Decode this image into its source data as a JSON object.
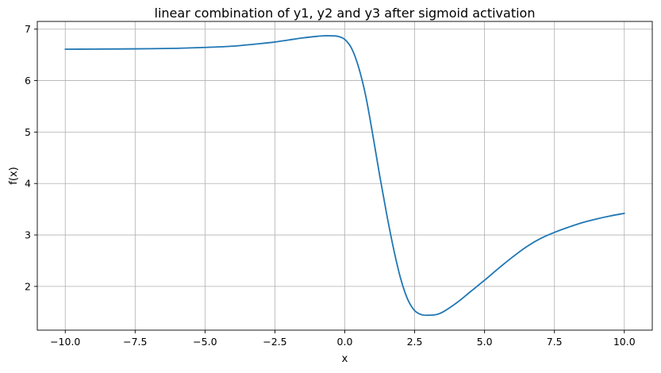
{
  "chart_data": {
    "type": "line",
    "title": "linear combination of y1, y2 and y3 after sigmoid activation",
    "xlabel": "x",
    "ylabel": "f(x)",
    "xlim": [
      -11.0,
      11.0
    ],
    "ylim": [
      1.15,
      7.15
    ],
    "x_ticks": [
      -10.0,
      -7.5,
      -5.0,
      -2.5,
      0.0,
      2.5,
      5.0,
      7.5,
      10.0
    ],
    "x_tick_labels": [
      "−10.0",
      "−7.5",
      "−5.0",
      "−2.5",
      "0.0",
      "2.5",
      "5.0",
      "7.5",
      "10.0"
    ],
    "y_ticks": [
      2,
      3,
      4,
      5,
      6,
      7
    ],
    "y_tick_labels": [
      "2",
      "3",
      "4",
      "5",
      "6",
      "7"
    ],
    "grid": true,
    "legend": "none",
    "series": [
      {
        "color": "#1f77b4",
        "x": [
          -10.0,
          -9.0,
          -8.0,
          -7.0,
          -6.0,
          -5.0,
          -4.0,
          -3.0,
          -2.5,
          -2.0,
          -1.5,
          -1.0,
          -0.75,
          -0.5,
          -0.25,
          0.0,
          0.25,
          0.5,
          0.75,
          1.0,
          1.25,
          1.5,
          1.75,
          2.0,
          2.25,
          2.5,
          2.75,
          3.0,
          3.25,
          3.5,
          4.0,
          4.5,
          5.0,
          5.5,
          6.0,
          6.5,
          7.0,
          7.5,
          8.0,
          8.5,
          9.0,
          9.5,
          10.0
        ],
        "y": [
          6.61,
          6.612,
          6.615,
          6.62,
          6.628,
          6.645,
          6.67,
          6.72,
          6.75,
          6.79,
          6.83,
          6.86,
          6.87,
          6.87,
          6.86,
          6.8,
          6.62,
          6.25,
          5.7,
          4.95,
          4.15,
          3.4,
          2.72,
          2.15,
          1.75,
          1.53,
          1.45,
          1.44,
          1.45,
          1.5,
          1.68,
          1.9,
          2.12,
          2.35,
          2.57,
          2.77,
          2.93,
          3.05,
          3.15,
          3.24,
          3.31,
          3.37,
          3.42
        ]
      }
    ]
  }
}
